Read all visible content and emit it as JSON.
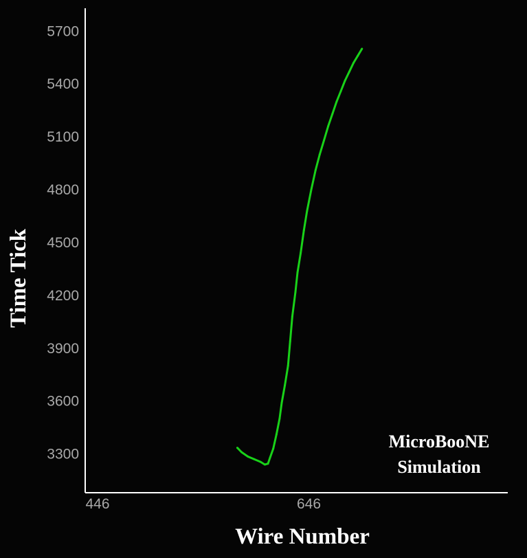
{
  "chart_data": {
    "type": "line",
    "title": "",
    "xlabel": "Wire Number",
    "ylabel": "Time Tick",
    "annotation": [
      "MicroBooNE",
      "Simulation"
    ],
    "xlim": [
      446,
      846
    ],
    "ylim": [
      3080,
      5830
    ],
    "xticks": [
      446,
      646
    ],
    "yticks": [
      3300,
      3600,
      3900,
      4200,
      4500,
      4800,
      5100,
      5400,
      5700
    ],
    "grid": false,
    "legend": "none",
    "series": [
      {
        "color": "#19d219",
        "x": [
          590,
          594,
          600,
          606,
          612,
          616,
          619,
          621,
          624,
          627,
          630,
          632,
          635,
          638,
          640,
          642,
          645,
          647,
          650,
          653,
          656,
          660,
          664,
          668,
          672,
          676,
          680,
          684,
          688,
          692,
          696,
          700,
          704,
          708
        ],
        "y": [
          3335,
          3310,
          3285,
          3270,
          3255,
          3240,
          3245,
          3280,
          3330,
          3410,
          3500,
          3590,
          3690,
          3800,
          3940,
          4080,
          4220,
          4330,
          4440,
          4570,
          4680,
          4800,
          4910,
          5000,
          5080,
          5160,
          5230,
          5300,
          5360,
          5420,
          5470,
          5520,
          5560,
          5600
        ]
      }
    ],
    "colors": {
      "background": "#050505",
      "axis": "#ffffff",
      "tick_label": "#a9a9a9",
      "track": "#19d219"
    }
  }
}
